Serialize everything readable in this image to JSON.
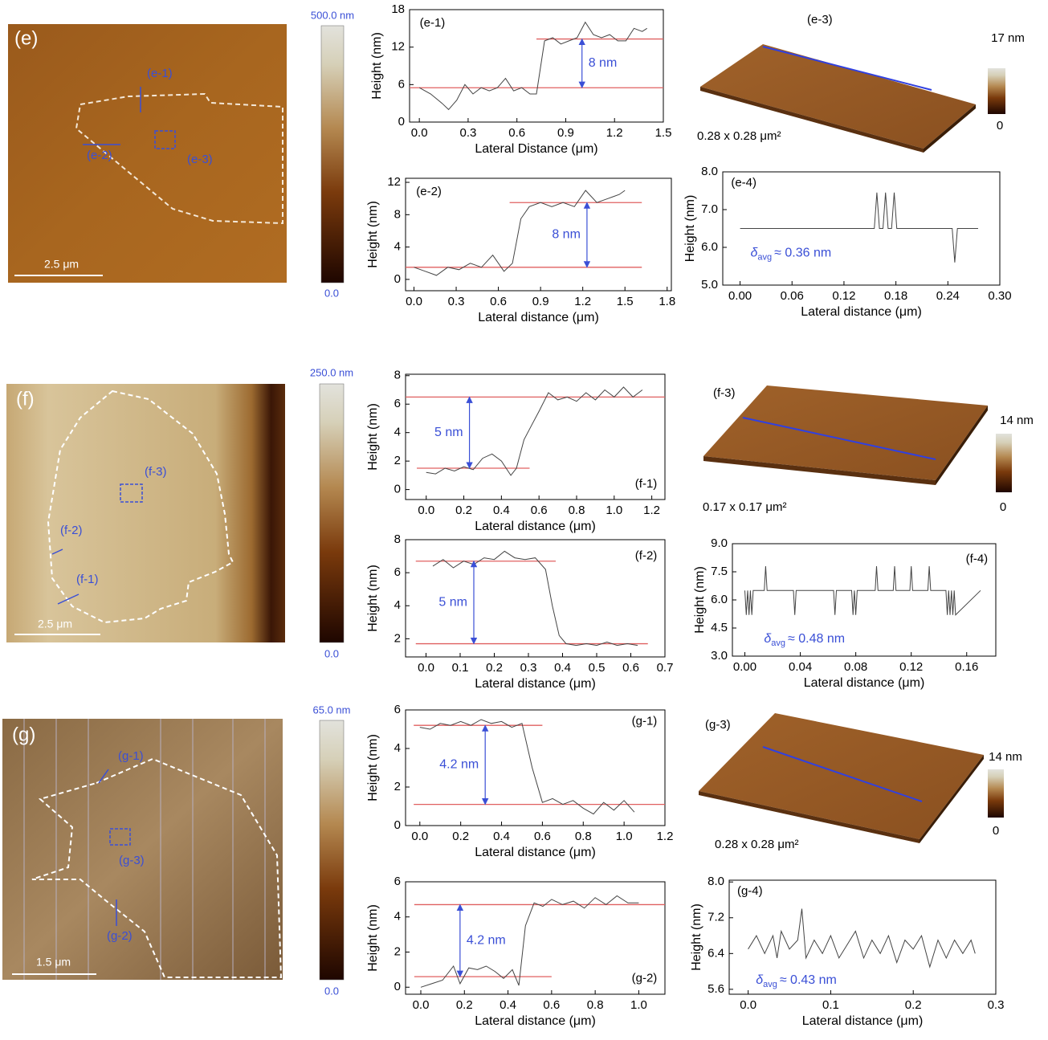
{
  "images": [
    {
      "label": "(e)",
      "scale_bar": "2.5 μm",
      "colorbar_max": "500.0 nm",
      "colorbar_min": "0.0",
      "markers": [
        "(e-1)",
        "(e-2)",
        "(e-3)"
      ]
    },
    {
      "label": "(f)",
      "scale_bar": "2.5 μm",
      "colorbar_max": "250.0 nm",
      "colorbar_min": "0.0",
      "markers": [
        "(f-1)",
        "(f-2)",
        "(f-3)"
      ]
    },
    {
      "label": "(g)",
      "scale_bar": "1.5 μm",
      "colorbar_max": "65.0 nm",
      "colorbar_min": "0.0",
      "markers": [
        "(g-1)",
        "(g-2)",
        "(g-3)"
      ]
    }
  ],
  "surfaces": [
    {
      "label": "(e-3)",
      "size": "0.28 x 0.28 μm²",
      "colorbar_max": "17 nm",
      "colorbar_min": "0"
    },
    {
      "label": "(f-3)",
      "size": "0.17 x 0.17 μm²",
      "colorbar_max": "14 nm",
      "colorbar_min": "0"
    },
    {
      "label": "(g-3)",
      "size": "0.28 x 0.28 μm²",
      "colorbar_max": "14 nm",
      "colorbar_min": "0"
    }
  ],
  "chart_data": [
    {
      "type": "line",
      "panel_label": "(e-1)",
      "xlabel": "Lateral Distance (μm)",
      "ylabel": "Height (nm)",
      "xlim": [
        -0.06,
        1.5
      ],
      "ylim": [
        0,
        18
      ],
      "xticks": [
        {
          "value": 0,
          "label": "0.0"
        },
        0.3,
        0.6,
        0.9,
        1.2,
        1.5
      ],
      "yticks": [
        0,
        6,
        12,
        18
      ],
      "x": [
        0,
        0.07,
        0.14,
        0.18,
        0.23,
        0.28,
        0.33,
        0.38,
        0.43,
        0.48,
        0.53,
        0.58,
        0.63,
        0.68,
        0.72,
        0.77,
        0.82,
        0.87,
        0.92,
        0.97,
        1.02,
        1.07,
        1.12,
        1.17,
        1.22,
        1.27,
        1.32,
        1.37,
        1.4
      ],
      "values": [
        5.5,
        4.5,
        3,
        2,
        3.5,
        6,
        4.5,
        5.5,
        5,
        5.5,
        7,
        5,
        5.5,
        4.5,
        4.5,
        13,
        13.5,
        12.5,
        13,
        13.5,
        16,
        14,
        13.5,
        14,
        13,
        13,
        15,
        14.5,
        15
      ],
      "color": "#444444",
      "ref_color": "#e06060",
      "reference_lines": [
        {
          "value": 5.5,
          "x_range": [
            -0.06,
            1.5
          ]
        },
        {
          "value": 13.3,
          "x_range": [
            0.72,
            1.5
          ]
        }
      ],
      "arrow_x": 1.0,
      "annotation": "8 nm",
      "annotation_color": "#3a4fd6"
    },
    {
      "type": "line",
      "panel_label": "(e-2)",
      "xlabel": "Lateral distance (μm)",
      "ylabel": "Height (nm)",
      "xlim": [
        -0.06,
        1.83
      ],
      "ylim": [
        -1.4,
        12.5
      ],
      "xticks": [
        {
          "value": 0,
          "label": "0.0"
        },
        0.3,
        0.6,
        0.9,
        1.2,
        1.5,
        1.8
      ],
      "yticks": [
        0,
        4,
        8,
        12
      ],
      "x": [
        0,
        0.08,
        0.16,
        0.24,
        0.32,
        0.4,
        0.48,
        0.56,
        0.64,
        0.7,
        0.76,
        0.82,
        0.9,
        0.98,
        1.06,
        1.14,
        1.22,
        1.3,
        1.38,
        1.46,
        1.5
      ],
      "values": [
        1.5,
        1,
        0.5,
        1.5,
        1.2,
        2,
        1.5,
        3,
        1,
        2,
        7.5,
        9,
        9.5,
        9,
        9.5,
        9,
        11,
        9.5,
        10,
        10.5,
        11
      ],
      "color": "#444444",
      "ref_color": "#e06060",
      "reference_lines": [
        {
          "value": 1.5,
          "x_range": [
            -0.06,
            1.62
          ]
        },
        {
          "value": 9.5,
          "x_range": [
            0.68,
            1.62
          ]
        }
      ],
      "arrow_x": 1.23,
      "annotation": "8 nm",
      "annotation_color": "#3a4fd6"
    },
    {
      "type": "line",
      "panel_label": "(e-4)",
      "xlabel": "Lateral distance (μm)",
      "ylabel": "Height (nm)",
      "xlim": [
        -0.02,
        0.3
      ],
      "ylim": [
        5,
        8
      ],
      "xticks": [
        {
          "value": 0,
          "label": "0.00"
        },
        0.06,
        0.12,
        0.18,
        0.24,
        {
          "value": 0.3,
          "label": "0.30"
        }
      ],
      "yticks": [
        {
          "value": 5,
          "label": "5.0"
        },
        {
          "value": 6,
          "label": "6.0"
        },
        {
          "value": 7,
          "label": "7.0"
        },
        {
          "value": 8,
          "label": "8.0"
        }
      ],
      "x": [
        0,
        0.155,
        0.158,
        0.161,
        0.165,
        0.168,
        0.171,
        0.175,
        0.178,
        0.181,
        0.245,
        0.248,
        0.251,
        0.275
      ],
      "values": [
        6.5,
        6.5,
        7.45,
        6.5,
        6.5,
        7.45,
        6.5,
        6.5,
        7.45,
        6.5,
        6.5,
        5.6,
        6.5,
        6.5
      ],
      "color": "#444444",
      "delta": {
        "symbol": "δ",
        "subscript": "avg",
        "text": "≈ 0.36 nm"
      },
      "annotation_color": "#3a4fd6"
    },
    {
      "type": "line",
      "panel_label": "(f-1)",
      "xlabel": "Lateral distance (μm)",
      "ylabel": "Height (nm)",
      "xlim": [
        -0.11,
        1.27
      ],
      "ylim": [
        -0.7,
        8.1
      ],
      "xticks": [
        {
          "value": 0,
          "label": "0.0"
        },
        0.2,
        0.4,
        0.6,
        0.8,
        {
          "value": 1,
          "label": "1.0"
        },
        1.2
      ],
      "yticks": [
        0,
        2,
        4,
        6,
        8
      ],
      "x": [
        0,
        0.05,
        0.1,
        0.15,
        0.2,
        0.25,
        0.3,
        0.35,
        0.4,
        0.45,
        0.48,
        0.52,
        0.56,
        0.6,
        0.65,
        0.7,
        0.75,
        0.8,
        0.85,
        0.9,
        0.95,
        1,
        1.05,
        1.1,
        1.15
      ],
      "values": [
        1.2,
        1.1,
        1.5,
        1.3,
        1.6,
        1.4,
        2.2,
        2.5,
        2,
        1,
        1.5,
        3.5,
        4.5,
        5.5,
        6.8,
        6.3,
        6.5,
        6.2,
        6.8,
        6.3,
        7,
        6.5,
        7.2,
        6.5,
        7
      ],
      "color": "#444444",
      "ref_color": "#e06060",
      "reference_lines": [
        {
          "value": 1.5,
          "x_range": [
            -0.05,
            0.55
          ]
        },
        {
          "value": 6.5,
          "x_range": [
            -0.11,
            1.27
          ]
        }
      ],
      "arrow_x": 0.23,
      "annotation": "5 nm",
      "annotation_color": "#3a4fd6"
    },
    {
      "type": "line",
      "panel_label": "(f-2)",
      "xlabel": "Lateral distance (μm)",
      "ylabel": "Height (nm)",
      "xlim": [
        -0.06,
        0.7
      ],
      "ylim": [
        0.9,
        8
      ],
      "xticks": [
        {
          "value": 0,
          "label": "0.0"
        },
        0.1,
        0.2,
        0.3,
        0.4,
        0.5,
        0.6,
        0.7
      ],
      "yticks": [
        2,
        4,
        6,
        8
      ],
      "x": [
        0.02,
        0.05,
        0.08,
        0.11,
        0.14,
        0.17,
        0.2,
        0.23,
        0.26,
        0.29,
        0.32,
        0.35,
        0.37,
        0.39,
        0.41,
        0.44,
        0.47,
        0.5,
        0.53,
        0.56,
        0.59,
        0.62
      ],
      "values": [
        6.4,
        6.8,
        6.3,
        6.7,
        6.5,
        6.9,
        6.8,
        7.3,
        6.9,
        6.8,
        6.9,
        6.2,
        4,
        2.2,
        1.7,
        1.6,
        1.7,
        1.6,
        1.8,
        1.6,
        1.7,
        1.6
      ],
      "color": "#444444",
      "ref_color": "#e06060",
      "reference_lines": [
        {
          "value": 6.7,
          "x_range": [
            -0.03,
            0.38
          ]
        },
        {
          "value": 1.7,
          "x_range": [
            -0.03,
            0.65
          ]
        }
      ],
      "arrow_x": 0.14,
      "annotation": "5 nm",
      "annotation_color": "#3a4fd6"
    },
    {
      "type": "line",
      "panel_label": "(f-4)",
      "xlabel": "Lateral distance (μm)",
      "ylabel": "Height (nm)",
      "xlim": [
        -0.009,
        0.181
      ],
      "ylim": [
        3,
        9
      ],
      "xticks": [
        {
          "value": 0,
          "label": "0.00"
        },
        0.04,
        0.08,
        0.12,
        0.16
      ],
      "yticks": [
        {
          "value": 3,
          "label": "3.0"
        },
        4.5,
        {
          "value": 6,
          "label": "6.0"
        },
        7.5,
        {
          "value": 9,
          "label": "9.0"
        }
      ],
      "x": [
        0,
        0.001,
        0.002,
        0.003,
        0.004,
        0.005,
        0.006,
        0.014,
        0.015,
        0.016,
        0.035,
        0.036,
        0.037,
        0.064,
        0.065,
        0.066,
        0.077,
        0.078,
        0.079,
        0.08,
        0.081,
        0.094,
        0.095,
        0.096,
        0.107,
        0.108,
        0.109,
        0.119,
        0.12,
        0.121,
        0.132,
        0.133,
        0.134,
        0.145,
        0.146,
        0.147,
        0.148,
        0.149,
        0.15,
        0.151,
        0.152,
        0.17
      ],
      "values": [
        6.5,
        5.2,
        6.5,
        5.2,
        6.5,
        5.2,
        6.5,
        6.5,
        7.8,
        6.5,
        6.5,
        5.2,
        6.5,
        6.5,
        5.2,
        6.5,
        6.5,
        5.2,
        6.5,
        5.2,
        6.5,
        6.5,
        7.8,
        6.5,
        6.5,
        7.8,
        6.5,
        6.5,
        7.8,
        6.5,
        6.5,
        7.8,
        6.5,
        6.5,
        5.2,
        6.5,
        5.2,
        6.5,
        5.2,
        6.5,
        5.2,
        6.5
      ],
      "color": "#444444",
      "delta": {
        "symbol": "δ",
        "subscript": "avg",
        "text": "≈ 0.48 nm"
      },
      "annotation_color": "#3a4fd6"
    },
    {
      "type": "line",
      "panel_label": "(g-1)",
      "xlabel": "Lateral distance (μm)",
      "ylabel": "Height (nm)",
      "xlim": [
        -0.07,
        1.2
      ],
      "ylim": [
        0,
        6
      ],
      "xticks": [
        {
          "value": 0,
          "label": "0.0"
        },
        0.2,
        0.4,
        0.6,
        0.8,
        {
          "value": 1,
          "label": "1.0"
        },
        1.2
      ],
      "yticks": [
        0,
        2,
        4,
        6
      ],
      "x": [
        0,
        0.05,
        0.1,
        0.15,
        0.2,
        0.25,
        0.3,
        0.35,
        0.4,
        0.45,
        0.5,
        0.55,
        0.6,
        0.65,
        0.7,
        0.75,
        0.8,
        0.85,
        0.9,
        0.95,
        1,
        1.05
      ],
      "values": [
        5.1,
        5,
        5.3,
        5.2,
        5.4,
        5.2,
        5.5,
        5.3,
        5.4,
        5.1,
        5.3,
        3,
        1.2,
        1.4,
        1.1,
        1.3,
        0.9,
        0.6,
        1.2,
        0.8,
        1.3,
        0.7
      ],
      "color": "#444444",
      "ref_color": "#e06060",
      "reference_lines": [
        {
          "value": 5.2,
          "x_range": [
            -0.03,
            0.6
          ]
        },
        {
          "value": 1.1,
          "x_range": [
            -0.03,
            1.2
          ]
        }
      ],
      "arrow_x": 0.32,
      "annotation": "4.2 nm",
      "annotation_color": "#3a4fd6"
    },
    {
      "type": "line",
      "panel_label": "(g-2)",
      "xlabel": "Lateral distance (μm)",
      "ylabel": "Height (nm)",
      "xlim": [
        -0.07,
        1.12
      ],
      "ylim": [
        -0.4,
        6
      ],
      "xticks": [
        {
          "value": 0,
          "label": "0.0"
        },
        0.2,
        0.4,
        0.6,
        0.8,
        {
          "value": 1,
          "label": "1.0"
        }
      ],
      "yticks": [
        0,
        2,
        4,
        6
      ],
      "x": [
        0,
        0.05,
        0.1,
        0.15,
        0.18,
        0.22,
        0.26,
        0.3,
        0.34,
        0.38,
        0.42,
        0.45,
        0.48,
        0.52,
        0.56,
        0.6,
        0.65,
        0.7,
        0.75,
        0.8,
        0.85,
        0.9,
        0.95,
        1
      ],
      "values": [
        0,
        0.2,
        0.4,
        1.2,
        0.2,
        1.1,
        1,
        1.2,
        0.9,
        0.5,
        1,
        0.1,
        3.5,
        4.8,
        4.6,
        5,
        4.7,
        4.9,
        4.5,
        5.1,
        4.7,
        5.2,
        4.8,
        4.8
      ],
      "color": "#444444",
      "ref_color": "#e06060",
      "reference_lines": [
        {
          "value": 0.6,
          "x_range": [
            -0.03,
            0.6
          ]
        },
        {
          "value": 4.7,
          "x_range": [
            -0.03,
            1.12
          ]
        }
      ],
      "arrow_x": 0.18,
      "annotation": "4.2 nm",
      "annotation_color": "#3a4fd6"
    },
    {
      "type": "line",
      "panel_label": "(g-4)",
      "xlabel": "Lateral distance (μm)",
      "ylabel": "Height (nm)",
      "xlim": [
        -0.023,
        0.3
      ],
      "ylim": [
        5.49,
        8.04
      ],
      "xticks": [
        {
          "value": 0,
          "label": "0.0"
        },
        0.1,
        0.2,
        0.3
      ],
      "yticks": [
        5.6,
        6.4,
        7.2,
        {
          "value": 8,
          "label": "8.0"
        }
      ],
      "x": [
        0,
        0.01,
        0.02,
        0.03,
        0.035,
        0.04,
        0.05,
        0.06,
        0.065,
        0.07,
        0.08,
        0.09,
        0.1,
        0.11,
        0.12,
        0.13,
        0.14,
        0.15,
        0.16,
        0.17,
        0.18,
        0.19,
        0.2,
        0.21,
        0.22,
        0.23,
        0.24,
        0.25,
        0.26,
        0.27,
        0.275
      ],
      "values": [
        6.5,
        6.8,
        6.4,
        6.8,
        6.3,
        6.9,
        6.5,
        6.7,
        7.4,
        6.3,
        6.7,
        6.4,
        6.8,
        6.3,
        6.6,
        6.9,
        6.3,
        6.7,
        6.4,
        6.8,
        6.2,
        6.7,
        6.5,
        6.8,
        6.1,
        6.7,
        6.3,
        6.7,
        6.4,
        6.7,
        6.4
      ],
      "color": "#444444",
      "delta": {
        "symbol": "δ",
        "subscript": "avg",
        "text": "≈ 0.43 nm"
      },
      "annotation_color": "#3a4fd6"
    }
  ]
}
